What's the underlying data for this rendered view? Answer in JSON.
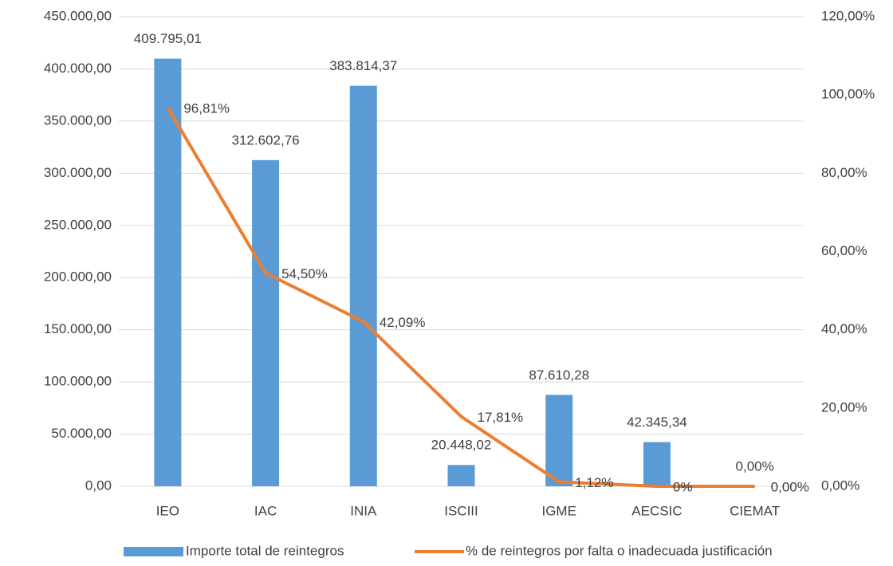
{
  "chart_data": {
    "type": "bar",
    "categories": [
      "IEO",
      "IAC",
      "INIA",
      "ISCIII",
      "IGME",
      "AECSIC",
      "CIEMAT"
    ],
    "series": [
      {
        "name": "Importe total de reintegros",
        "type": "bar",
        "color": "#5b9bd5",
        "values": [
          409795.01,
          312602.76,
          383814.37,
          20448.02,
          87610.28,
          42345.34,
          0
        ],
        "value_labels": [
          "409.795,01",
          "312.602,76",
          "383.814,37",
          "20.448,02",
          "87.610,28",
          "42.345,34",
          "0,00%"
        ]
      },
      {
        "name": "% de reintegros por falta o inadecuada justificación",
        "type": "line",
        "axis": "y2",
        "color": "#ed7d31",
        "values": [
          96.81,
          54.5,
          42.09,
          17.81,
          1.12,
          0,
          0
        ],
        "value_labels": [
          "96,81%",
          "54,50%",
          "42,09%",
          "17,81%",
          "1,12%",
          "0%",
          "0,00%"
        ]
      }
    ],
    "ylim": [
      0,
      450000
    ],
    "yticks": [
      {
        "value": 0,
        "label": "0,00"
      },
      {
        "value": 50000,
        "label": "50.000,00"
      },
      {
        "value": 100000,
        "label": "100.000,00"
      },
      {
        "value": 150000,
        "label": "150.000,00"
      },
      {
        "value": 200000,
        "label": "200.000,00"
      },
      {
        "value": 250000,
        "label": "250.000,00"
      },
      {
        "value": 300000,
        "label": "300.000,00"
      },
      {
        "value": 350000,
        "label": "350.000,00"
      },
      {
        "value": 400000,
        "label": "400.000,00"
      },
      {
        "value": 450000,
        "label": "450.000,00"
      }
    ],
    "y2lim": [
      0,
      120
    ],
    "y2ticks": [
      {
        "value": 0,
        "label": "0,00%"
      },
      {
        "value": 20,
        "label": "20,00%"
      },
      {
        "value": 40,
        "label": "40,00%"
      },
      {
        "value": 60,
        "label": "60,00%"
      },
      {
        "value": 80,
        "label": "80,00%"
      },
      {
        "value": 100,
        "label": "100,00%"
      },
      {
        "value": 120,
        "label": "120,00%"
      }
    ],
    "grid": true,
    "legend": "bottom"
  }
}
